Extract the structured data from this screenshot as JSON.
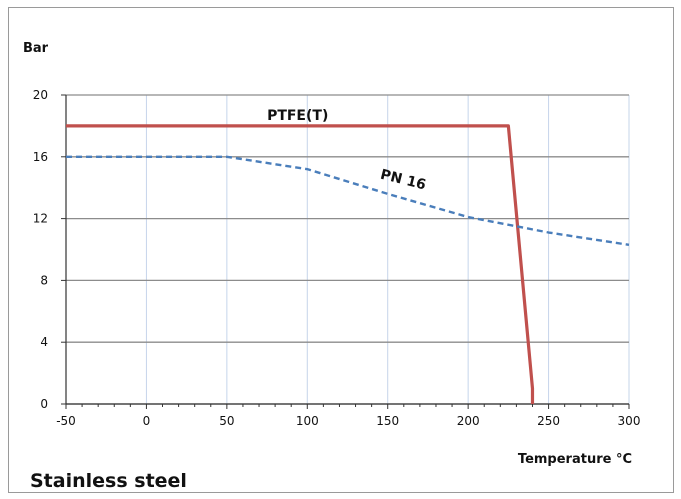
{
  "chart_data": {
    "type": "line",
    "ylabel": "Bar",
    "xlabel": "Temperature °C",
    "caption": "Stainless steel",
    "xlim": [
      -50,
      300
    ],
    "ylim": [
      0,
      20
    ],
    "xticks": [
      -50,
      0,
      50,
      100,
      150,
      200,
      250,
      300
    ],
    "yticks": [
      0,
      4,
      8,
      12,
      16,
      20
    ],
    "grid": true,
    "series": [
      {
        "name": "PTFE(T)",
        "style": "solid",
        "color": "#c0504d",
        "x": [
          -50,
          225,
          240,
          240
        ],
        "y": [
          18,
          18,
          1,
          0
        ]
      },
      {
        "name": "PN 16",
        "style": "dashed",
        "color": "#4a7ebb",
        "x": [
          -50,
          50,
          100,
          150,
          200,
          250,
          300
        ],
        "y": [
          16,
          16,
          15.2,
          13.6,
          12.1,
          11.1,
          10.3
        ]
      }
    ]
  }
}
